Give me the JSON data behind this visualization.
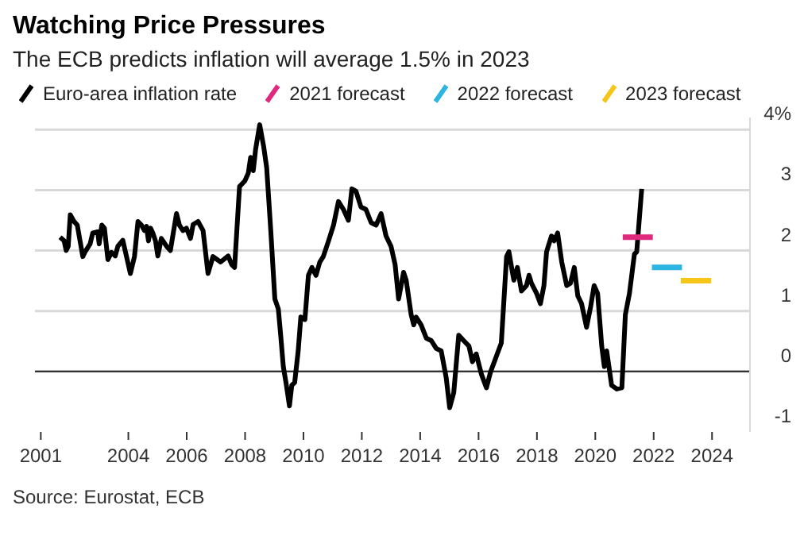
{
  "chart_data": {
    "type": "line",
    "title": "Watching Price Pressures",
    "subtitle": "The ECB predicts inflation will average 1.5% in 2023",
    "annotations": [
      "Source: Eurostat, ECB"
    ],
    "xlim": [
      2000.8,
      2025.3
    ],
    "xticks": [
      2001,
      2004,
      2006,
      2008,
      2010,
      2012,
      2014,
      2016,
      2018,
      2020,
      2022,
      2024
    ],
    "ylim": [
      -1,
      4.2
    ],
    "yticks": [
      -1,
      0,
      1,
      2,
      3,
      {
        "value": 4,
        "label": "4%"
      }
    ],
    "grid": "y",
    "legend": "top left",
    "marker": "none",
    "ref_lines": [
      {
        "axis": "y",
        "value": 0,
        "color": "#333333"
      }
    ],
    "series": [
      {
        "name": "Euro-area inflation rate",
        "color": "#000000",
        "x": [
          2001.66,
          2001.8,
          2001.87,
          2001.94,
          2002.01,
          2002.14,
          2002.25,
          2002.44,
          2002.52,
          2002.69,
          2002.78,
          2002.95,
          2003.0,
          2003.09,
          2003.18,
          2003.3,
          2003.42,
          2003.55,
          2003.64,
          2003.81,
          2003.9,
          2004.07,
          2004.21,
          2004.33,
          2004.45,
          2004.55,
          2004.62,
          2004.69,
          2004.76,
          2004.84,
          2004.93,
          2005.01,
          2005.13,
          2005.31,
          2005.44,
          2005.65,
          2005.75,
          2005.87,
          2005.99,
          2006.13,
          2006.22,
          2006.39,
          2006.56,
          2006.73,
          2006.9,
          2007.16,
          2007.42,
          2007.54,
          2007.64,
          2007.81,
          2007.99,
          2008.11,
          2008.19,
          2008.28,
          2008.36,
          2008.5,
          2008.64,
          2008.74,
          2008.88,
          2009.02,
          2009.14,
          2009.22,
          2009.31,
          2009.4,
          2009.52,
          2009.6,
          2009.7,
          2009.82,
          2009.91,
          2010.05,
          2010.17,
          2010.29,
          2010.43,
          2010.56,
          2010.68,
          2010.86,
          2011.03,
          2011.2,
          2011.37,
          2011.54,
          2011.66,
          2011.8,
          2011.97,
          2012.14,
          2012.32,
          2012.49,
          2012.66,
          2012.83,
          2013.0,
          2013.14,
          2013.26,
          2013.43,
          2013.52,
          2013.69,
          2013.78,
          2013.86,
          2014.03,
          2014.21,
          2014.38,
          2014.55,
          2014.72,
          2014.89,
          2015.01,
          2015.15,
          2015.32,
          2015.49,
          2015.67,
          2015.79,
          2015.92,
          2016.1,
          2016.27,
          2016.41,
          2016.61,
          2016.78,
          2016.96,
          2017.04,
          2017.16,
          2017.21,
          2017.33,
          2017.47,
          2017.64,
          2017.73,
          2017.81,
          2017.99,
          2018.12,
          2018.24,
          2018.33,
          2018.5,
          2018.59,
          2018.71,
          2018.85,
          2019.02,
          2019.15,
          2019.28,
          2019.4,
          2019.53,
          2019.7,
          2019.84,
          2019.96,
          2020.08,
          2020.22,
          2020.31,
          2020.39,
          2020.56,
          2020.74,
          2020.91,
          2021.03,
          2021.17,
          2021.34,
          2021.42,
          2021.59
        ],
        "values": [
          2.22,
          2.16,
          2.0,
          2.07,
          2.59,
          2.48,
          2.42,
          1.9,
          1.98,
          2.11,
          2.29,
          2.31,
          2.11,
          2.42,
          2.37,
          1.85,
          1.97,
          1.91,
          2.07,
          2.17,
          1.98,
          1.62,
          1.9,
          2.48,
          2.42,
          2.33,
          2.4,
          2.16,
          2.37,
          2.29,
          2.16,
          1.91,
          2.2,
          2.07,
          2.0,
          2.61,
          2.42,
          2.33,
          2.37,
          2.2,
          2.43,
          2.48,
          2.33,
          1.62,
          1.9,
          1.81,
          1.91,
          1.77,
          1.72,
          3.06,
          3.15,
          3.28,
          3.54,
          3.32,
          3.67,
          4.08,
          3.71,
          3.37,
          2.33,
          1.2,
          1.03,
          0.6,
          0.08,
          -0.18,
          -0.57,
          -0.23,
          -0.18,
          0.34,
          0.9,
          0.86,
          1.59,
          1.72,
          1.59,
          1.81,
          1.9,
          2.16,
          2.42,
          2.81,
          2.68,
          2.5,
          3.02,
          2.98,
          2.72,
          2.68,
          2.46,
          2.42,
          2.61,
          2.24,
          2.07,
          1.77,
          1.2,
          1.64,
          1.51,
          0.94,
          0.77,
          0.9,
          0.77,
          0.55,
          0.51,
          0.38,
          0.34,
          -0.1,
          -0.6,
          -0.35,
          0.6,
          0.51,
          0.42,
          0.16,
          0.29,
          -0.05,
          -0.27,
          -0.01,
          0.25,
          0.47,
          1.9,
          1.98,
          1.64,
          1.51,
          1.72,
          1.33,
          1.42,
          1.59,
          1.46,
          1.29,
          1.12,
          1.42,
          1.98,
          2.24,
          2.16,
          2.29,
          1.81,
          1.42,
          1.46,
          1.72,
          1.25,
          1.12,
          0.73,
          1.07,
          1.42,
          1.29,
          0.42,
          0.08,
          0.34,
          -0.23,
          -0.29,
          -0.27,
          0.94,
          1.29,
          1.94,
          1.98,
          3.02
        ]
      },
      {
        "name": "2021 forecast",
        "color": "#e0287f",
        "x": [
          2020.94,
          2021.97
        ],
        "values": [
          2.22,
          2.22
        ]
      },
      {
        "name": "2022 forecast",
        "color": "#2bb5e0",
        "x": [
          2021.94,
          2022.97
        ],
        "values": [
          1.72,
          1.72
        ]
      },
      {
        "name": "2023 forecast",
        "color": "#f5c518",
        "x": [
          2022.93,
          2023.97
        ],
        "values": [
          1.5,
          1.5
        ]
      }
    ]
  }
}
